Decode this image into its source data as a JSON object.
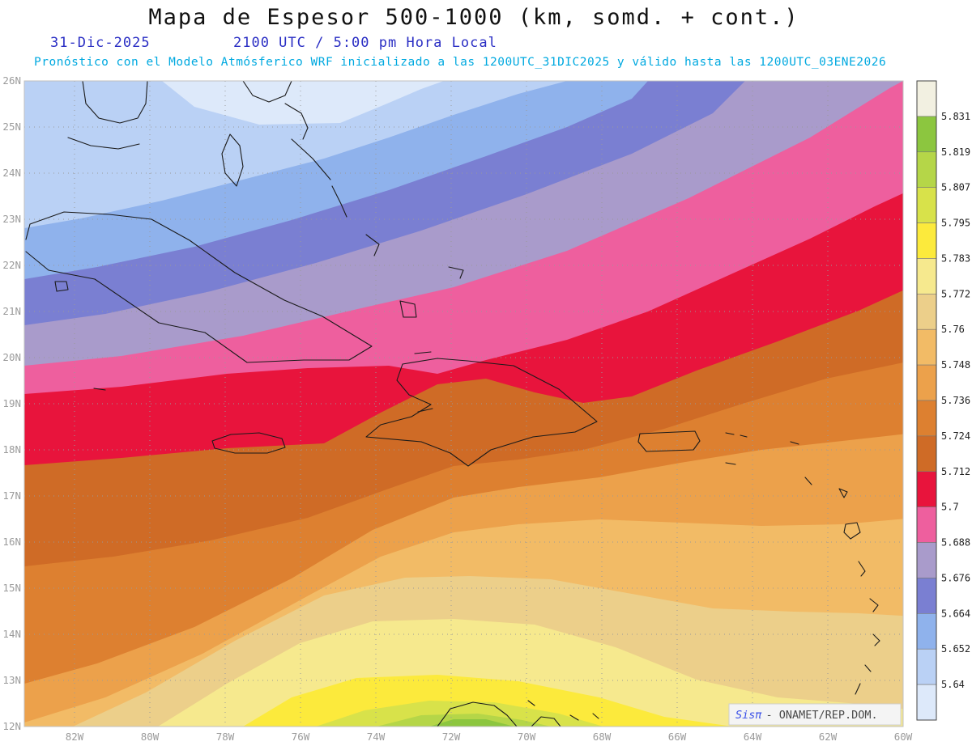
{
  "header": {
    "title": "Mapa de Espesor 500-1000 (km, somd. + cont.)",
    "date": "31-Dic-2025",
    "time": "2100 UTC / 5:00 pm Hora Local",
    "forecast_note": "Pronóstico con el Modelo Atmósferico WRF inicializado a las 1200UTC_31DIC2025 y válido hasta las  1200UTC_03ENE2026"
  },
  "watermark": {
    "app": "Sisπ",
    "org": "- ONAMET/REP.DOM."
  },
  "axes": {
    "lat_labels": [
      "26N",
      "25N",
      "24N",
      "23N",
      "22N",
      "21N",
      "20N",
      "19N",
      "18N",
      "17N",
      "16N",
      "15N",
      "14N",
      "13N",
      "12N"
    ],
    "lon_labels": [
      "82W",
      "80W",
      "78W",
      "76W",
      "74W",
      "72W",
      "70W",
      "68W",
      "66W",
      "64W",
      "62W",
      "60W"
    ]
  },
  "colorbar": {
    "levels": [
      "5.831",
      "5.819",
      "5.807",
      "5.795",
      "5.783",
      "5.772",
      "5.76",
      "5.748",
      "5.736",
      "5.724",
      "5.712",
      "5.7",
      "5.688",
      "5.676",
      "5.664",
      "5.652",
      "5.64"
    ],
    "colors": [
      "#f2f0e1",
      "#8cc63f",
      "#b5d648",
      "#d8e24a",
      "#fcea3c",
      "#f6e98e",
      "#eccf8a",
      "#f2bb66",
      "#eca14b",
      "#dd8030",
      "#cf6b26",
      "#e8143c",
      "#ee5f9e",
      "#a99bcb",
      "#7a7fd2",
      "#8fb2ec",
      "#bad1f5",
      "#dde9fa"
    ]
  },
  "chart_data": {
    "type": "heatmap",
    "title": "Mapa de Espesor 500-1000 (km, somd. + cont.)",
    "variable": "500-1000 thickness (km), shaded + contours",
    "lat_range": [
      12,
      26
    ],
    "lon_range": [
      "83W (approx)",
      "60W"
    ],
    "contour_levels_km": [
      5.64,
      5.652,
      5.664,
      5.676,
      5.688,
      5.7,
      5.712,
      5.724,
      5.736,
      5.748,
      5.76,
      5.772,
      5.783,
      5.795,
      5.807,
      5.819,
      5.831
    ],
    "pattern": "Values increase from northwest (≈5.63 km, pale blue over Florida/Bahamas) toward a warm dome in the south-central Caribbean near 12N 72W (≈5.82-5.83 km, green); bands run SW-NE with red 5.7-5.712 band crossing Cuba/Hispaniola latitudes",
    "legend_position": "right",
    "grid": "dotted, 1° latitude / 2° longitude"
  }
}
